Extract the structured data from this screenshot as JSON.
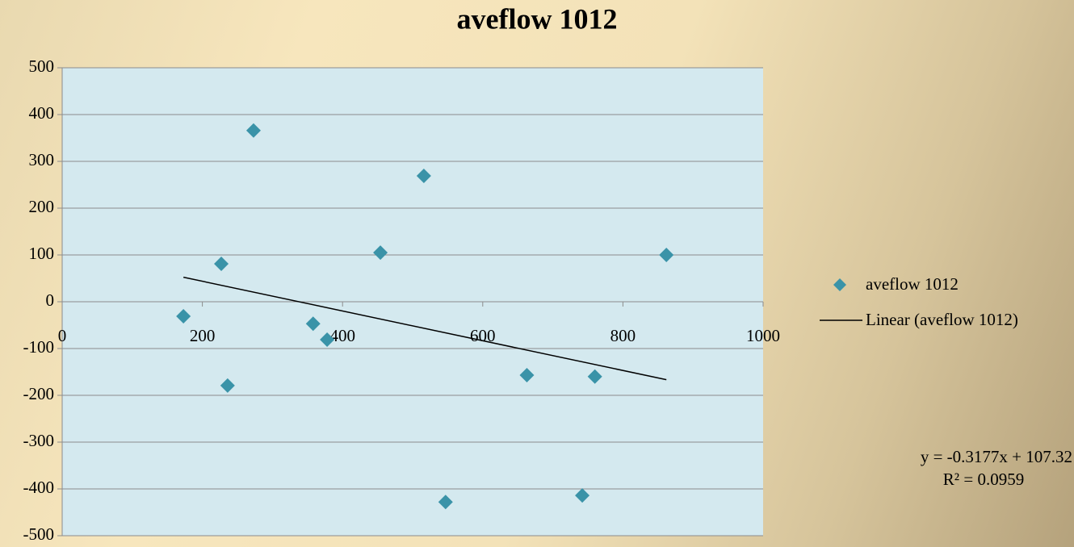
{
  "chart_data": {
    "type": "scatter",
    "title": "aveflow 1012",
    "series": [
      {
        "name": "aveflow 1012",
        "color": "#3a93a8",
        "x": [
          173,
          227,
          236,
          273,
          358,
          378,
          454,
          516,
          547,
          663,
          742,
          760,
          862
        ],
        "values": [
          -31,
          81,
          -179,
          366,
          -47,
          -81,
          105,
          269,
          -428,
          -157,
          -414,
          -160,
          100
        ]
      }
    ],
    "trendline": {
      "name": "Linear (aveflow 1012)",
      "color": "#000000",
      "slope": -0.3177,
      "intercept": 107.32,
      "equation": "y = -0.3177x + 107.32",
      "r2_label": "R² = 0.0959"
    },
    "xlim": [
      0,
      1000
    ],
    "xticks": [
      0,
      200,
      400,
      600,
      800,
      1000
    ],
    "ylim": [
      -500,
      500
    ],
    "yticks": [
      -500,
      -400,
      -300,
      -200,
      -100,
      0,
      100,
      200,
      300,
      400,
      500
    ],
    "grid": true,
    "legend": "right"
  }
}
